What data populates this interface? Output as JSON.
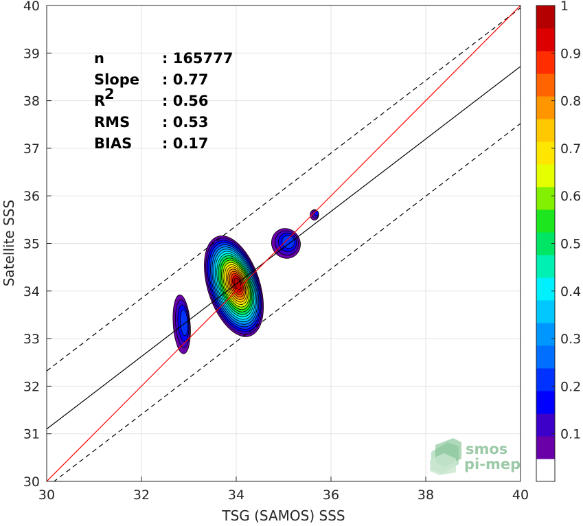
{
  "chart_data": {
    "type": "scatter",
    "xlabel": "TSG (SAMOS) SSS",
    "ylabel": "Satellite SSS",
    "xlim": [
      30,
      40
    ],
    "ylim": [
      30,
      40
    ],
    "xticks": [
      30,
      32,
      34,
      36,
      38,
      40
    ],
    "yticks": [
      30,
      31,
      32,
      33,
      34,
      35,
      36,
      37,
      38,
      39,
      40
    ],
    "grid": true,
    "stats": [
      {
        "label": "n",
        "value": ": 165777"
      },
      {
        "label": "Slope",
        "value": ": 0.77"
      },
      {
        "label": "R",
        "sup": "2",
        "value": ": 0.56"
      },
      {
        "label": "RMS",
        "value": ": 0.53"
      },
      {
        "label": "BIAS",
        "value": ": 0.17"
      }
    ],
    "lines": {
      "identity": {
        "x": [
          30,
          40
        ],
        "y": [
          30,
          40
        ],
        "color": "#ff0000"
      },
      "fit": {
        "x": [
          30,
          40
        ],
        "y": [
          31.1,
          38.72
        ],
        "color": "#000000"
      },
      "fit_upper": {
        "x": [
          30,
          40
        ],
        "y": [
          32.32,
          39.95
        ],
        "color": "#000000",
        "dash": true
      },
      "fit_lower": {
        "x": [
          30,
          40
        ],
        "y": [
          29.88,
          37.52
        ],
        "color": "#000000",
        "dash": true
      }
    },
    "density_peaks": [
      {
        "x": 33.95,
        "y": 34.1,
        "max_level": 1.0
      },
      {
        "x": 32.85,
        "y": 33.3,
        "max_level": 0.2
      },
      {
        "x": 35.05,
        "y": 35.0,
        "max_level": 0.2
      },
      {
        "x": 35.65,
        "y": 35.6,
        "max_level": 0.15
      }
    ],
    "colorbar": {
      "ticks": [
        "0.1",
        "0.2",
        "0.3",
        "0.4",
        "0.5",
        "0.6",
        "0.7",
        "0.8",
        "0.9",
        "1"
      ],
      "levels": [
        0,
        0.05,
        0.1,
        0.15,
        0.2,
        0.25,
        0.3,
        0.35,
        0.4,
        0.45,
        0.5,
        0.55,
        0.6,
        0.65,
        0.7,
        0.75,
        0.8,
        0.85,
        0.9,
        0.95,
        1.0
      ],
      "colors": [
        "#ffffff",
        "#6a00a8",
        "#3c00c8",
        "#0000ff",
        "#0032ff",
        "#006eff",
        "#0096ff",
        "#00c8ff",
        "#00f0ff",
        "#00f0b4",
        "#00e664",
        "#1ee61e",
        "#82f000",
        "#e6ff00",
        "#ffe600",
        "#ffc800",
        "#ff9600",
        "#ff6400",
        "#ff2d00",
        "#dc0000",
        "#b40000"
      ]
    },
    "logo": {
      "line1": "smos",
      "line2": "pi-mep"
    }
  }
}
